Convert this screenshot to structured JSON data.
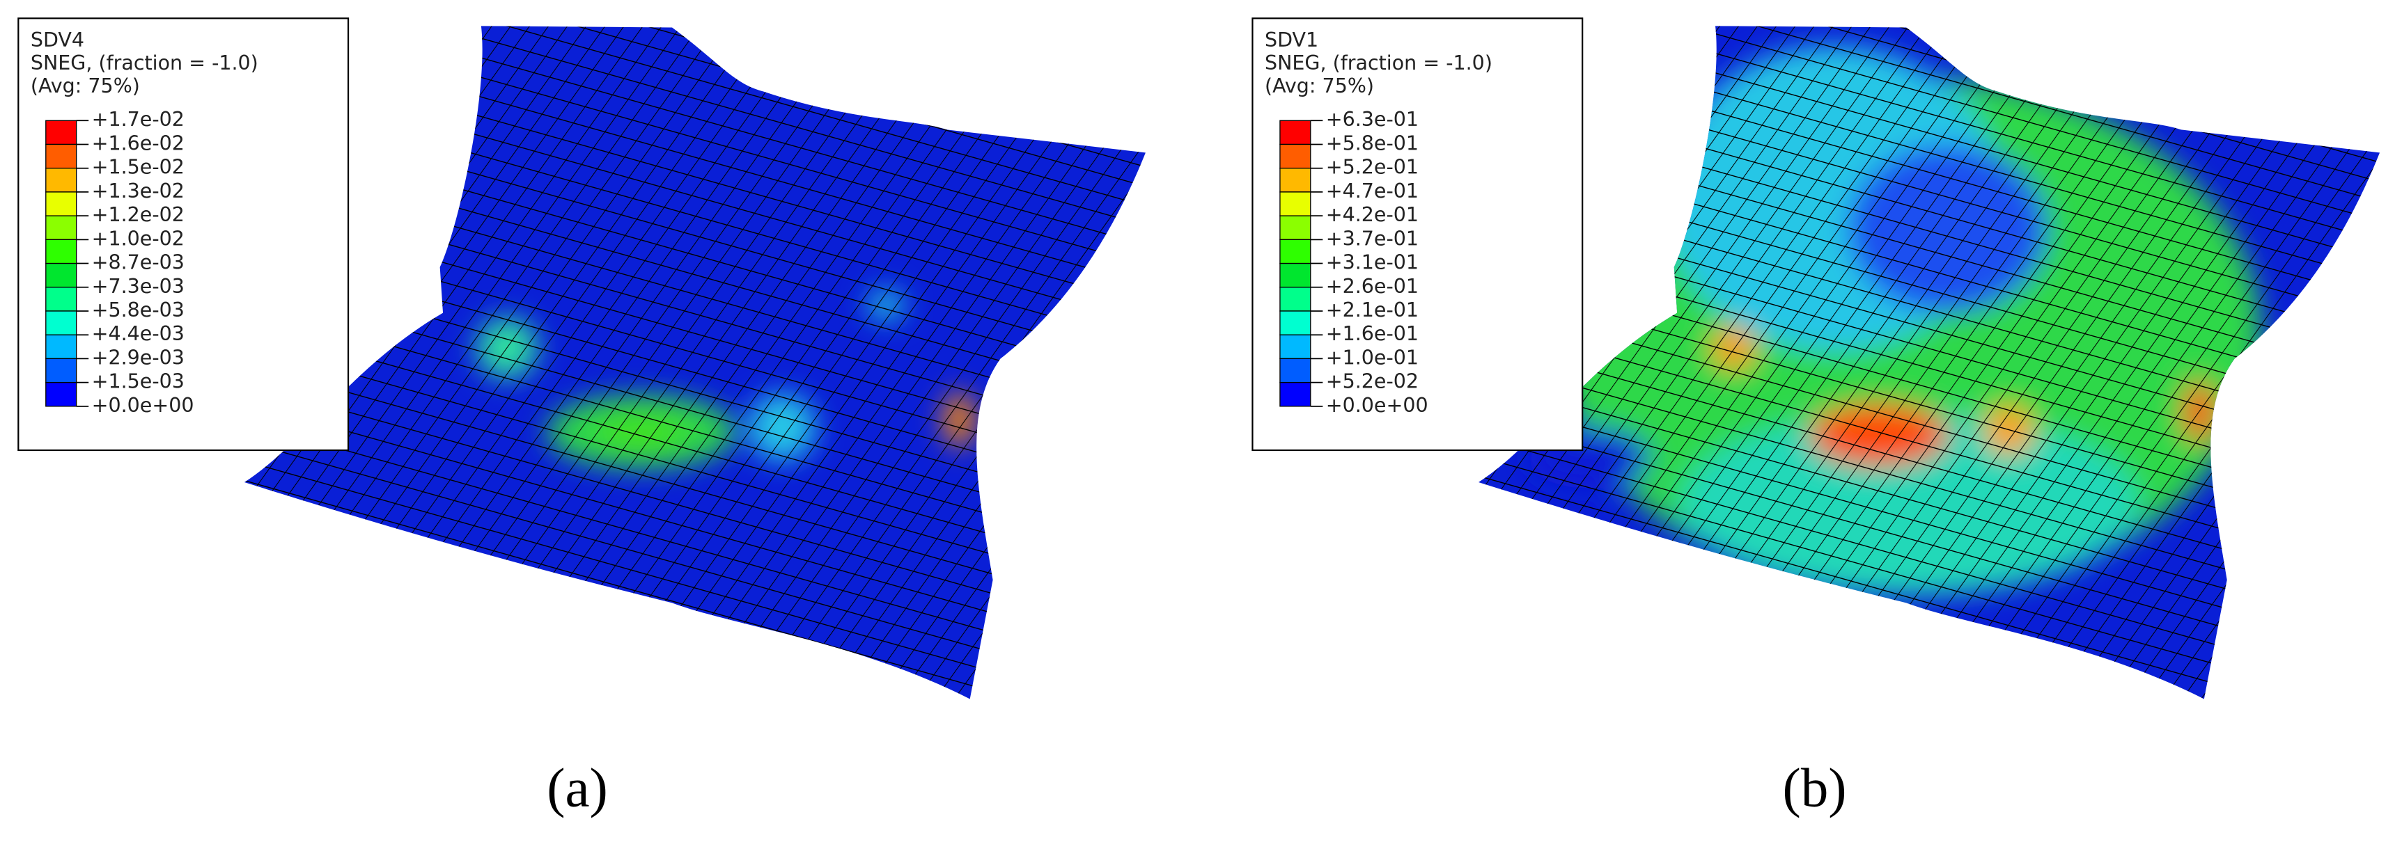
{
  "panels": [
    {
      "legend": {
        "variable": "SDV4",
        "section": "SNEG, (fraction = -1.0)",
        "averaging": "(Avg: 75%)",
        "levels": [
          "+1.7e-02",
          "+1.6e-02",
          "+1.5e-02",
          "+1.3e-02",
          "+1.2e-02",
          "+1.0e-02",
          "+8.7e-03",
          "+7.3e-03",
          "+5.8e-03",
          "+4.4e-03",
          "+2.9e-03",
          "+1.5e-03",
          "+0.0e+00"
        ]
      },
      "label": "(a)"
    },
    {
      "legend": {
        "variable": "SDV1",
        "section": "SNEG, (fraction = -1.0)",
        "averaging": "(Avg: 75%)",
        "levels": [
          "+6.3e-01",
          "+5.8e-01",
          "+5.2e-01",
          "+4.7e-01",
          "+4.2e-01",
          "+3.7e-01",
          "+3.1e-01",
          "+2.6e-01",
          "+2.1e-01",
          "+1.6e-01",
          "+1.0e-01",
          "+5.2e-02",
          "+0.0e+00"
        ]
      },
      "label": "(b)"
    }
  ]
}
